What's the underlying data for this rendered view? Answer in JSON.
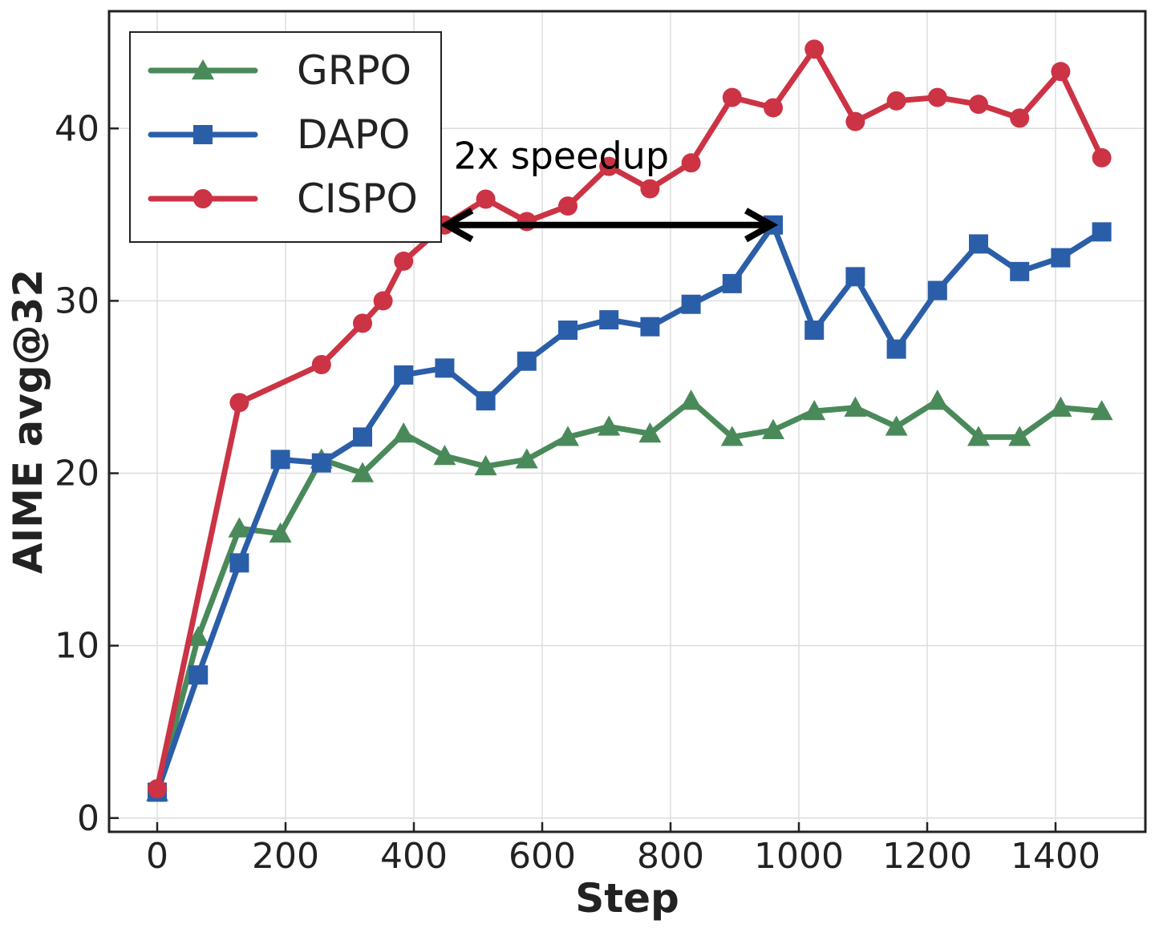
{
  "chart_data": {
    "type": "line",
    "xlabel": "Step",
    "ylabel": "AIME avg@32",
    "xlim": [
      -75,
      1540
    ],
    "ylim": [
      -0.8,
      46.8
    ],
    "xticks": [
      0,
      200,
      400,
      600,
      800,
      1000,
      1200,
      1400
    ],
    "yticks": [
      0,
      10,
      20,
      30,
      40
    ],
    "grid": true,
    "legend_position": "top-left",
    "series": [
      {
        "name": "GRPO",
        "color": "#4a8a5a",
        "marker": "triangle",
        "points": [
          [
            0,
            1.5
          ],
          [
            64,
            10.5
          ],
          [
            128,
            16.8
          ],
          [
            192,
            16.5
          ],
          [
            256,
            20.8
          ],
          [
            320,
            20.0
          ],
          [
            384,
            22.3
          ],
          [
            448,
            21.0
          ],
          [
            512,
            20.4
          ],
          [
            576,
            20.8
          ],
          [
            640,
            22.1
          ],
          [
            704,
            22.7
          ],
          [
            768,
            22.3
          ],
          [
            832,
            24.2
          ],
          [
            896,
            22.1
          ],
          [
            960,
            22.5
          ],
          [
            1024,
            23.6
          ],
          [
            1088,
            23.8
          ],
          [
            1152,
            22.7
          ],
          [
            1216,
            24.2
          ],
          [
            1280,
            22.1
          ],
          [
            1344,
            22.1
          ],
          [
            1408,
            23.8
          ],
          [
            1472,
            23.6
          ]
        ]
      },
      {
        "name": "DAPO",
        "color": "#2b5ea8",
        "marker": "square",
        "points": [
          [
            0,
            1.5
          ],
          [
            64,
            8.3
          ],
          [
            128,
            14.8
          ],
          [
            192,
            20.8
          ],
          [
            256,
            20.6
          ],
          [
            320,
            22.1
          ],
          [
            384,
            25.7
          ],
          [
            448,
            26.1
          ],
          [
            512,
            24.2
          ],
          [
            576,
            26.5
          ],
          [
            640,
            28.3
          ],
          [
            704,
            28.9
          ],
          [
            768,
            28.5
          ],
          [
            832,
            29.8
          ],
          [
            896,
            31.0
          ],
          [
            960,
            34.4
          ],
          [
            1024,
            28.3
          ],
          [
            1088,
            31.4
          ],
          [
            1152,
            27.2
          ],
          [
            1216,
            30.6
          ],
          [
            1280,
            33.3
          ],
          [
            1344,
            31.7
          ],
          [
            1408,
            32.5
          ],
          [
            1472,
            34.0
          ]
        ]
      },
      {
        "name": "CISPO",
        "color": "#cc3344",
        "marker": "circle",
        "points": [
          [
            0,
            1.7
          ],
          [
            128,
            24.1
          ],
          [
            256,
            26.3
          ],
          [
            320,
            28.7
          ],
          [
            352,
            30.0
          ],
          [
            384,
            32.3
          ],
          [
            448,
            34.4
          ],
          [
            512,
            35.9
          ],
          [
            576,
            34.6
          ],
          [
            640,
            35.5
          ],
          [
            704,
            37.8
          ],
          [
            768,
            36.5
          ],
          [
            832,
            38.0
          ],
          [
            896,
            41.8
          ],
          [
            960,
            41.2
          ],
          [
            1024,
            44.6
          ],
          [
            1088,
            40.4
          ],
          [
            1152,
            41.6
          ],
          [
            1216,
            41.8
          ],
          [
            1280,
            41.4
          ],
          [
            1344,
            40.6
          ],
          [
            1408,
            43.3
          ],
          [
            1472,
            38.3
          ]
        ]
      }
    ],
    "annotation": {
      "text": "2x speedup",
      "arrow_from": [
        448,
        34.4
      ],
      "arrow_to": [
        960,
        34.4
      ],
      "text_anchor": [
        462,
        38.4
      ]
    }
  }
}
